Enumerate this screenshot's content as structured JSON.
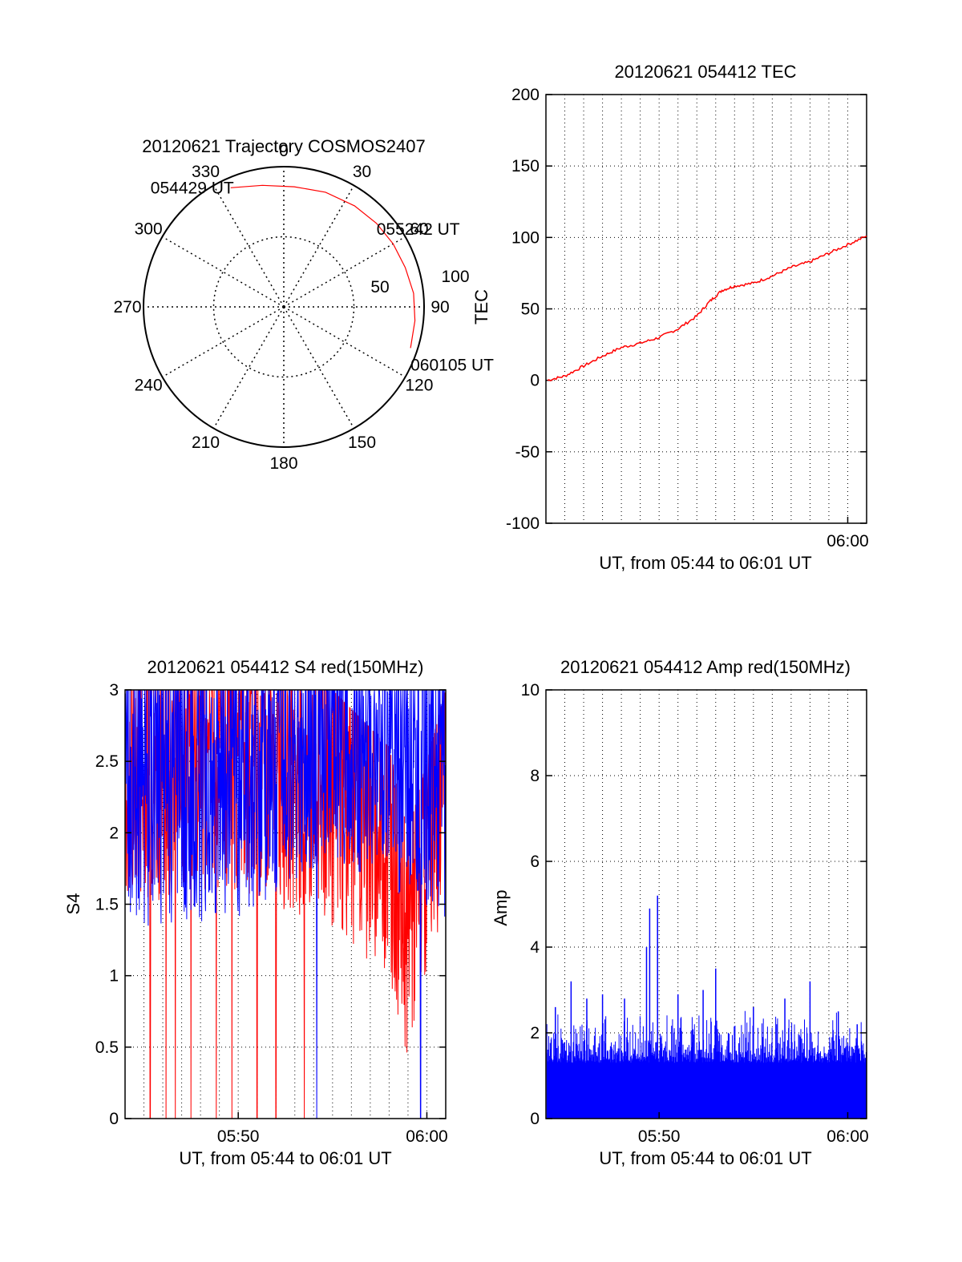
{
  "chart_data": [
    {
      "id": "trajectory",
      "type": "polar",
      "title": "20120621 Trajectory COSMOS2407",
      "radial_label": "TEC",
      "angle_labels": [
        "0",
        "30",
        "60",
        "90",
        "120",
        "150",
        "180",
        "210",
        "240",
        "270",
        "300",
        "330"
      ],
      "radius_labels": [
        "50",
        "100"
      ],
      "rlim": [
        0,
        100
      ],
      "grid": true,
      "track_color": "#ff0000",
      "track": [
        {
          "az": 336,
          "el": 93
        },
        {
          "az": 350,
          "el": 88
        },
        {
          "az": 5,
          "el": 86
        },
        {
          "az": 20,
          "el": 87
        },
        {
          "az": 35,
          "el": 88
        },
        {
          "az": 48,
          "el": 89
        },
        {
          "az": 60,
          "el": 90
        },
        {
          "az": 72,
          "el": 91
        },
        {
          "az": 84,
          "el": 93
        },
        {
          "az": 96,
          "el": 94
        },
        {
          "az": 108,
          "el": 95
        }
      ],
      "annotations": [
        {
          "text": "054429 UT",
          "az": 336,
          "el": 93
        },
        {
          "text": "055242 UT",
          "az": 48,
          "el": 89
        },
        {
          "text": "060105 UT",
          "az": 108,
          "el": 95
        }
      ]
    },
    {
      "id": "tec",
      "type": "line",
      "title": "20120621 054412 TEC",
      "xlabel": "UT, from 05:44 to 06:01 UT",
      "ylabel": "TEC",
      "xlim": [
        "05:44",
        "06:01"
      ],
      "ylim": [
        -100,
        200
      ],
      "yticks": [
        "200",
        "150",
        "100",
        "50",
        "0",
        "-50",
        "-100"
      ],
      "xticks": [
        "06:00"
      ],
      "grid": true,
      "series": [
        {
          "color": "#ff0000",
          "points": [
            {
              "x": "05:44:05",
              "y": 0
            },
            {
              "x": "05:45:00",
              "y": 3
            },
            {
              "x": "05:46:00",
              "y": 10
            },
            {
              "x": "05:47:00",
              "y": 17
            },
            {
              "x": "05:48:00",
              "y": 23
            },
            {
              "x": "05:49:00",
              "y": 26
            },
            {
              "x": "05:50:00",
              "y": 30
            },
            {
              "x": "05:51:00",
              "y": 36
            },
            {
              "x": "05:52:00",
              "y": 45
            },
            {
              "x": "05:52:40",
              "y": 55
            },
            {
              "x": "05:53:20",
              "y": 63
            },
            {
              "x": "05:54:00",
              "y": 66
            },
            {
              "x": "05:55:00",
              "y": 68
            },
            {
              "x": "05:56:00",
              "y": 73
            },
            {
              "x": "05:57:00",
              "y": 79
            },
            {
              "x": "05:58:00",
              "y": 83
            },
            {
              "x": "05:59:00",
              "y": 89
            },
            {
              "x": "06:00:00",
              "y": 95
            },
            {
              "x": "06:01:00",
              "y": 101
            }
          ]
        }
      ]
    },
    {
      "id": "s4",
      "type": "line",
      "title": "20120621 054412 S4 red(150MHz)",
      "xlabel": "UT, from 05:44 to 06:01 UT",
      "ylabel": "S4",
      "xlim": [
        "05:44",
        "06:01"
      ],
      "ylim": [
        0,
        3
      ],
      "yticks": [
        "3",
        "2.5",
        "2",
        "1.5",
        "1",
        "0.5",
        "0"
      ],
      "xticks": [
        "05:50",
        "06:00"
      ],
      "grid": true,
      "series": [
        {
          "color": "#ff0000",
          "description_envelope": [
            {
              "x": "05:44",
              "low": 1.5,
              "high": 3.0
            },
            {
              "x": "05:50",
              "low": 1.6,
              "high": 3.0
            },
            {
              "x": "05:55",
              "low": 1.3,
              "high": 3.0
            },
            {
              "x": "05:58",
              "low": 1.0,
              "high": 2.6
            },
            {
              "x": "05:59",
              "low": 0.4,
              "high": 2.0
            },
            {
              "x": "06:00",
              "low": 1.0,
              "high": 2.5
            },
            {
              "x": "06:01",
              "low": 1.5,
              "high": 3.0
            }
          ],
          "dropouts": [
            "05:45:20",
            "05:46:10",
            "05:46:40",
            "05:47:30",
            "05:48:50",
            "05:49:40",
            "05:51:00",
            "05:52:00",
            "05:53:30"
          ]
        },
        {
          "color": "#0000ff",
          "description_envelope": [
            {
              "x": "05:44",
              "low": 1.3,
              "high": 3.0
            },
            {
              "x": "05:50",
              "low": 1.4,
              "high": 3.0
            },
            {
              "x": "05:55",
              "low": 1.8,
              "high": 3.0
            },
            {
              "x": "06:01",
              "low": 1.4,
              "high": 3.0
            }
          ],
          "dropouts": [
            "05:54:10",
            "05:59:40"
          ]
        }
      ]
    },
    {
      "id": "amp",
      "type": "line",
      "title": "20120621 054412 Amp red(150MHz)",
      "xlabel": "UT, from 05:44 to 06:01 UT",
      "ylabel": "Amp",
      "xlim": [
        "05:44",
        "06:01"
      ],
      "ylim": [
        0,
        10
      ],
      "yticks": [
        "10",
        "8",
        "6",
        "4",
        "2",
        "0"
      ],
      "xticks": [
        "05:50",
        "06:00"
      ],
      "grid": true,
      "series": [
        {
          "color": "#0000ff",
          "baseline_band": [
            0,
            1.3
          ],
          "spikes": [
            {
              "x": "05:44:30",
              "y": 2.6
            },
            {
              "x": "05:45:20",
              "y": 3.2
            },
            {
              "x": "05:46:10",
              "y": 2.8
            },
            {
              "x": "05:47:00",
              "y": 2.9
            },
            {
              "x": "05:48:10",
              "y": 2.8
            },
            {
              "x": "05:49:20",
              "y": 4.0
            },
            {
              "x": "05:49:30",
              "y": 4.9
            },
            {
              "x": "05:49:55",
              "y": 5.2
            },
            {
              "x": "05:51:00",
              "y": 2.9
            },
            {
              "x": "05:52:20",
              "y": 3.0
            },
            {
              "x": "05:53:00",
              "y": 3.5
            },
            {
              "x": "05:55:00",
              "y": 2.6
            },
            {
              "x": "05:56:40",
              "y": 2.8
            },
            {
              "x": "05:58:00",
              "y": 3.2
            },
            {
              "x": "05:59:30",
              "y": 2.5
            },
            {
              "x": "06:00:30",
              "y": 2.2
            }
          ]
        }
      ]
    }
  ]
}
